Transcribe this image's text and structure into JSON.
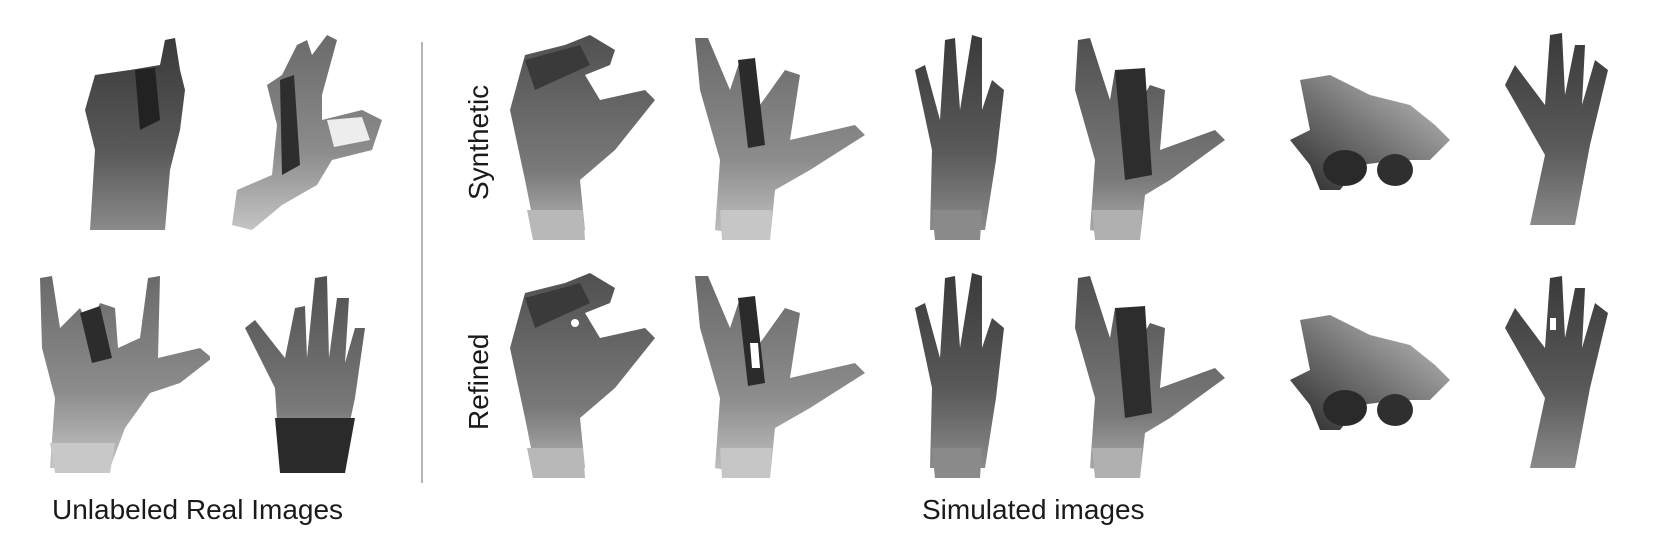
{
  "real_panel": {
    "caption": "Unlabeled Real Images"
  },
  "sim_panel": {
    "caption": "Simulated images",
    "row_labels": {
      "synthetic": "Synthetic",
      "refined": "Refined"
    }
  },
  "colors": {
    "background": "#ffffff",
    "divider": "#b5b5b5",
    "text": "#1a1a1a"
  }
}
